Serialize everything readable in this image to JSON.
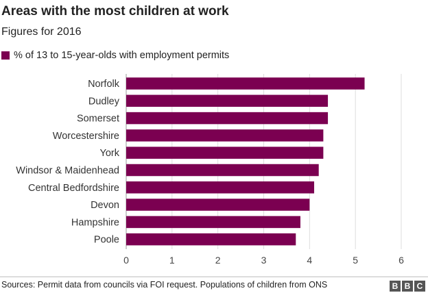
{
  "header": {
    "title": "Areas with the most children at work",
    "subtitle": "Figures for 2016"
  },
  "legend": {
    "label": "% of 13 to 15-year-olds with employment permits",
    "color": "#7b0051"
  },
  "footer": {
    "source": "Sources: Permit data from councils via FOI request. Populations of children from ONS",
    "logo_letters": [
      "B",
      "B",
      "C"
    ]
  },
  "chart_data": {
    "type": "bar",
    "orientation": "horizontal",
    "title": "Areas with the most children at work",
    "subtitle": "Figures for 2016",
    "categories": [
      "Norfolk",
      "Dudley",
      "Somerset",
      "Worcestershire",
      "York",
      "Windsor & Maidenhead",
      "Central Bedfordshire",
      "Devon",
      "Hampshire",
      "Poole"
    ],
    "series": [
      {
        "name": "% of 13 to 15-year-olds with employment permits",
        "values": [
          5.2,
          4.4,
          4.4,
          4.3,
          4.3,
          4.2,
          4.1,
          4.0,
          3.8,
          3.7
        ],
        "color": "#7b0051"
      }
    ],
    "xlim": [
      0,
      6
    ],
    "xticks": [
      0,
      1,
      2,
      3,
      4,
      5,
      6
    ],
    "grid": "vertical",
    "legend_position": "top-left"
  }
}
